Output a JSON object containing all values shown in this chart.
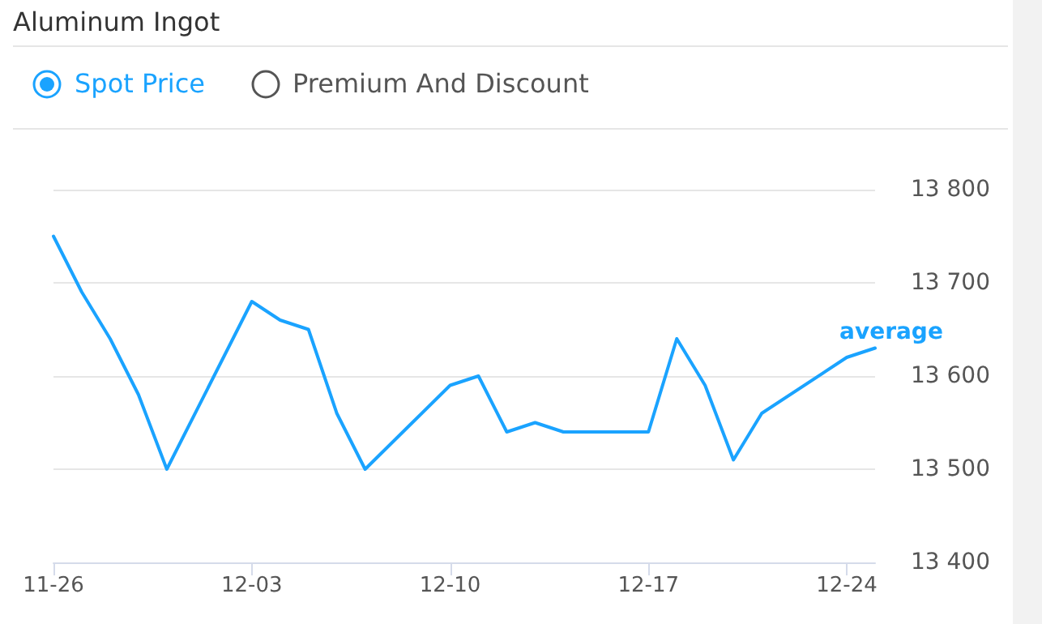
{
  "chart_data": {
    "type": "line",
    "title": "Aluminum Ingot",
    "annotations": [
      "Spot Price",
      "Premium And Discount"
    ],
    "x": [
      "--11-26",
      "--11-27",
      "--11-28",
      "--11-29",
      "--11-30",
      "--12-03",
      "--12-04",
      "--12-05",
      "--12-06",
      "--12-07",
      "--12-10",
      "--12-11",
      "--12-12",
      "--12-13",
      "--12-14",
      "--12-17",
      "--12-18",
      "--12-19",
      "--12-20",
      "--12-21",
      "--12-24",
      "--12-25"
    ],
    "series": [
      {
        "name": "average",
        "color": "#1aa3ff",
        "values": [
          13750,
          13690,
          13640,
          13580,
          13500,
          13680,
          13660,
          13650,
          13560,
          13500,
          13590,
          13600,
          13540,
          13550,
          13540,
          13540,
          13640,
          13590,
          13510,
          13560,
          13620,
          13630
        ]
      }
    ],
    "xlim": [
      "--11-26",
      "--12-25"
    ],
    "xticks": [
      {
        "value": "--11-26",
        "label": "11-26"
      },
      {
        "value": "--12-03",
        "label": "12-03"
      },
      {
        "value": "--12-10",
        "label": "12-10"
      },
      {
        "value": "--12-17",
        "label": "12-17"
      },
      {
        "value": "--12-24",
        "label": "12-24"
      }
    ],
    "ylim": [
      13400,
      13800
    ],
    "yticks": [
      {
        "value": 13400,
        "label": "13 400"
      },
      {
        "value": 13500,
        "label": "13 500"
      },
      {
        "value": 13600,
        "label": "13 600"
      },
      {
        "value": 13700,
        "label": "13 700"
      },
      {
        "value": 13800,
        "label": "13 800"
      }
    ],
    "grid": "y",
    "legend": false,
    "marker": "none",
    "line_style": "solid"
  }
}
